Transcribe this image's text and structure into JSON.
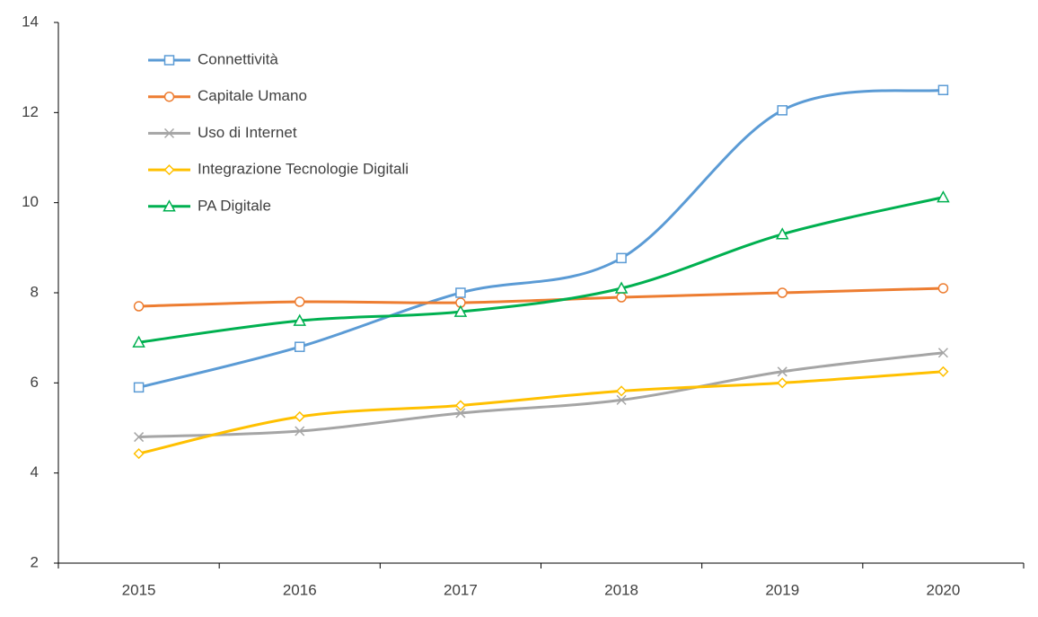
{
  "chart_data": {
    "type": "line",
    "categories": [
      "2015",
      "2016",
      "2017",
      "2018",
      "2019",
      "2020"
    ],
    "ylim": [
      2,
      14
    ],
    "yticks": [
      2,
      4,
      6,
      8,
      10,
      12,
      14
    ],
    "series": [
      {
        "name": "Connettività",
        "color": "#5b9bd5",
        "marker": "square",
        "values": [
          5.9,
          6.8,
          8.0,
          8.77,
          12.05,
          12.5
        ]
      },
      {
        "name": "Capitale Umano",
        "color": "#ed7d31",
        "marker": "circle",
        "values": [
          7.7,
          7.8,
          7.78,
          7.9,
          8.0,
          8.1
        ]
      },
      {
        "name": "Uso di Internet",
        "color": "#a5a5a5",
        "marker": "x",
        "values": [
          4.8,
          4.93,
          5.33,
          5.62,
          6.25,
          6.67
        ]
      },
      {
        "name": "Integrazione Tecnologie Digitali",
        "color": "#ffc000",
        "marker": "diamond",
        "values": [
          4.43,
          5.25,
          5.5,
          5.82,
          6.0,
          6.25
        ]
      },
      {
        "name": "PA Digitale",
        "color": "#00b050",
        "marker": "triangle",
        "values": [
          6.9,
          7.38,
          7.58,
          8.1,
          9.3,
          10.12
        ]
      }
    ],
    "smooth": true,
    "legend": "top-left"
  }
}
